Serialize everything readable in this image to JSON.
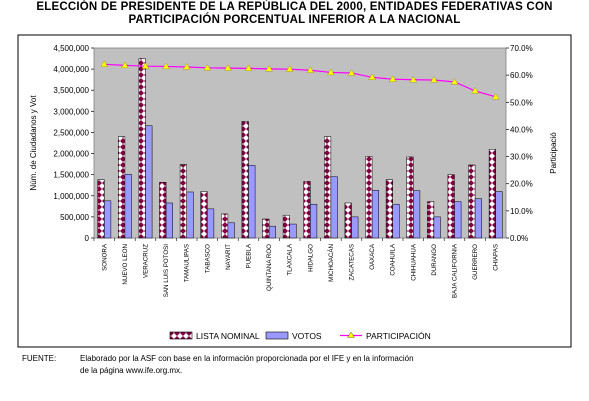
{
  "chart_data": {
    "type": "bar",
    "title_lines": [
      "ELECCIÓN DE PRESIDENTE DE LA REPÚBLICA DEL 2000, ENTIDADES FEDERATIVAS CON",
      "PARTICIPACIÓN PORCENTUAL INFERIOR A LA NACIONAL"
    ],
    "categories": [
      "SONORA",
      "NUEVO LEON",
      "VERACRUZ",
      "SAN LUIS POTOSI",
      "TAMAULIPAS",
      "TABASCO",
      "NAYARIT",
      "PUEBLA",
      "QUINTANA ROO",
      "TLAXCALA",
      "HIDALGO",
      "MICHOACÁN",
      "ZACATECAS",
      "OAXACA",
      "COAHUILA",
      "CHIHUAHUA",
      "DURANGO",
      "BAJA CALIFORNIA",
      "GUERRERO",
      "CHIAPAS"
    ],
    "series": [
      {
        "name": "LISTA NOMINAL",
        "axis": "left",
        "values": [
          1380000,
          2400000,
          4250000,
          1320000,
          1740000,
          1100000,
          570000,
          2760000,
          450000,
          540000,
          1340000,
          2400000,
          830000,
          1930000,
          1380000,
          1920000,
          860000,
          1500000,
          1730000,
          2100000
        ]
      },
      {
        "name": "VOTOS",
        "axis": "left",
        "values": [
          880000,
          1510000,
          2660000,
          830000,
          1090000,
          690000,
          360000,
          1720000,
          280000,
          330000,
          800000,
          1450000,
          500000,
          1130000,
          800000,
          1120000,
          500000,
          860000,
          930000,
          1100000
        ]
      },
      {
        "name": "PARTICIPACIÓN",
        "axis": "right",
        "type": "line",
        "values": [
          64.0,
          63.6,
          63.3,
          63.2,
          63.0,
          62.7,
          62.6,
          62.5,
          62.3,
          62.2,
          61.8,
          61.0,
          60.8,
          59.2,
          58.5,
          58.3,
          58.2,
          57.5,
          54.2,
          52.0
        ]
      }
    ],
    "ylabel": "Núm. de Ciudadanos y Vot",
    "y2label": "Participació",
    "ylim": [
      0,
      4500000
    ],
    "yticks": [
      "0",
      "500,000",
      "1,000,000",
      "1,500,000",
      "2,000,000",
      "2,500,000",
      "3,000,000",
      "3,500,000",
      "4,000,000",
      "4,500,000"
    ],
    "y2lim": [
      0,
      70
    ],
    "y2ticks": [
      "0.0%",
      "10.0%",
      "20.0%",
      "30.0%",
      "40.0%",
      "50.0%",
      "60.0%",
      "70.0%"
    ],
    "legend_position": "bottom",
    "grid": false,
    "colors": {
      "plot_bg": "#c0c0c0",
      "lista_nominal": "#ffffff",
      "lista_nominal_pattern": "#800040",
      "votos": "#9999ff",
      "participacion": "#ff00ff",
      "marker": "#ffff00"
    }
  },
  "footnote": {
    "label": "FUENTE:",
    "line1": "Elaborado por la ASF con base en la información proporcionada por el IFE y en la información",
    "line2": "de la página www.ife.org.mx."
  }
}
